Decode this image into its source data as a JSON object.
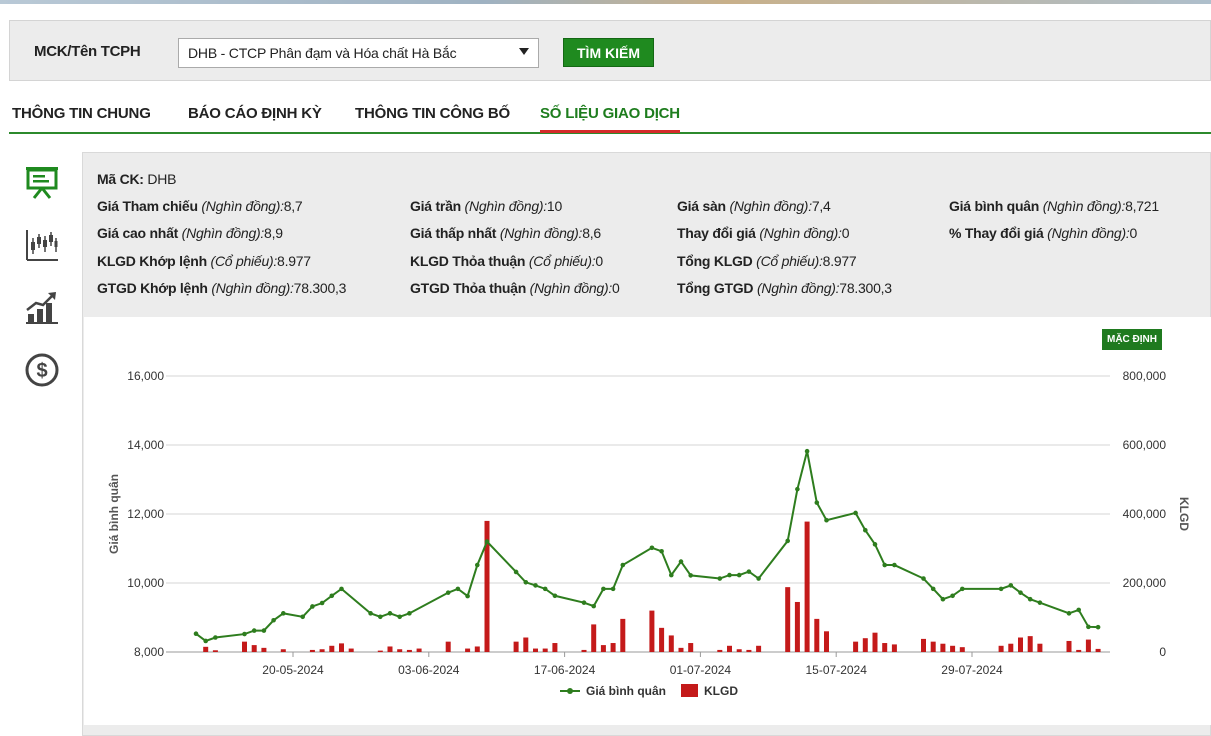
{
  "search": {
    "label": "MCK/Tên TCPH",
    "selected": "DHB - CTCP Phân đạm và Hóa chất Hà Bắc",
    "button": "TÌM KIẾM"
  },
  "tabs": [
    {
      "label": "THÔNG TIN CHUNG"
    },
    {
      "label": "BÁO CÁO ĐỊNH KỲ"
    },
    {
      "label": "THÔNG TIN CÔNG BỐ"
    },
    {
      "label": "SỐ LIỆU GIAO DỊCH",
      "active": true
    }
  ],
  "sidebar_icons": [
    "presentation-board-icon",
    "candlestick-chart-icon",
    "growth-bar-chart-icon",
    "dollar-coin-icon"
  ],
  "colors": {
    "accent": "#1f8a1f",
    "tab_underline": "#d42a2a",
    "price_line": "#2e7d1e",
    "volume_bar": "#c41a1a"
  },
  "info": {
    "mack": {
      "label": "Mã CK:",
      "value": "DHB"
    },
    "rows": [
      [
        {
          "label": "Giá Tham chiếu",
          "unit": "(Nghìn đồng):",
          "value": "8,7"
        },
        {
          "label": "Giá trần",
          "unit": "(Nghìn đồng):",
          "value": "10"
        },
        {
          "label": "Giá sàn",
          "unit": "(Nghìn đồng):",
          "value": "7,4"
        },
        {
          "label": "Giá bình quân",
          "unit": "(Nghìn đồng):",
          "value": "8,721"
        }
      ],
      [
        {
          "label": "Giá cao nhất",
          "unit": "(Nghìn đồng):",
          "value": "8,9"
        },
        {
          "label": "Giá thấp nhất",
          "unit": "(Nghìn đồng):",
          "value": "8,6"
        },
        {
          "label": "Thay đổi giá",
          "unit": "(Nghìn đồng):",
          "value": "0"
        },
        {
          "label": "% Thay đổi giá",
          "unit": "(Nghìn đồng):",
          "value": "0"
        }
      ],
      [
        {
          "label": "KLGD Khớp lệnh",
          "unit": "(Cổ phiếu):",
          "value": "8.977"
        },
        {
          "label": "KLGD Thỏa thuận",
          "unit": "(Cổ phiếu):",
          "value": "0"
        },
        {
          "label": "Tổng KLGD",
          "unit": "(Cổ phiếu):",
          "value": "8.977"
        }
      ],
      [
        {
          "label": "GTGD Khớp lệnh",
          "unit": "(Nghìn đồng):",
          "value": "78.300,3"
        },
        {
          "label": "GTGD Thỏa thuận",
          "unit": "(Nghìn đồng):",
          "value": "0"
        },
        {
          "label": "Tổng GTGD",
          "unit": "(Nghìn đồng):",
          "value": "78.300,3"
        }
      ]
    ]
  },
  "chart_button": "MẶC ĐỊNH",
  "chart_data": {
    "type": "line",
    "ylabel": "Giá bình quân",
    "y2label": "KLGD",
    "ylim": [
      8000,
      16000
    ],
    "y2lim": [
      0,
      800000
    ],
    "yticks": [
      "8,000",
      "10,000",
      "12,000",
      "14,000",
      "16,000"
    ],
    "y2ticks": [
      "0",
      "200,000",
      "400,000",
      "600,000",
      "800,000"
    ],
    "xticks": [
      {
        "label": "20-05-2024",
        "i": 10
      },
      {
        "label": "03-06-2024",
        "i": 24
      },
      {
        "label": "17-06-2024",
        "i": 38
      },
      {
        "label": "01-07-2024",
        "i": 52
      },
      {
        "label": "15-07-2024",
        "i": 66
      },
      {
        "label": "29-07-2024",
        "i": 80
      }
    ],
    "grid": true,
    "legend_position": "bottom-center",
    "series": [
      {
        "name": "Giá bình quân",
        "type": "line",
        "values": [
          [
            0,
            8530
          ],
          [
            1,
            8320
          ],
          [
            2,
            8420
          ],
          [
            5,
            8520
          ],
          [
            6,
            8620
          ],
          [
            7,
            8620
          ],
          [
            8,
            8920
          ],
          [
            9,
            9120
          ],
          [
            11,
            9020
          ],
          [
            12,
            9320
          ],
          [
            13,
            9420
          ],
          [
            14,
            9630
          ],
          [
            15,
            9830
          ],
          [
            18,
            9120
          ],
          [
            19,
            9020
          ],
          [
            20,
            9120
          ],
          [
            21,
            9020
          ],
          [
            22,
            9120
          ],
          [
            26,
            9720
          ],
          [
            27,
            9830
          ],
          [
            28,
            9620
          ],
          [
            29,
            10520
          ],
          [
            30,
            11200
          ],
          [
            33,
            10320
          ],
          [
            34,
            10020
          ],
          [
            35,
            9930
          ],
          [
            36,
            9830
          ],
          [
            37,
            9630
          ],
          [
            40,
            9430
          ],
          [
            41,
            9330
          ],
          [
            42,
            9830
          ],
          [
            43,
            9830
          ],
          [
            44,
            10520
          ],
          [
            47,
            11020
          ],
          [
            48,
            10920
          ],
          [
            49,
            10230
          ],
          [
            50,
            10620
          ],
          [
            51,
            10220
          ],
          [
            54,
            10130
          ],
          [
            55,
            10230
          ],
          [
            56,
            10230
          ],
          [
            57,
            10330
          ],
          [
            58,
            10130
          ],
          [
            61,
            11220
          ],
          [
            62,
            12720
          ],
          [
            63,
            13820
          ],
          [
            64,
            12330
          ],
          [
            65,
            11820
          ],
          [
            68,
            12030
          ],
          [
            69,
            11530
          ],
          [
            70,
            11120
          ],
          [
            71,
            10520
          ],
          [
            72,
            10520
          ],
          [
            75,
            10130
          ],
          [
            76,
            9830
          ],
          [
            77,
            9530
          ],
          [
            78,
            9630
          ],
          [
            79,
            9830
          ],
          [
            83,
            9830
          ],
          [
            84,
            9930
          ],
          [
            85,
            9720
          ],
          [
            86,
            9530
          ],
          [
            87,
            9430
          ],
          [
            90,
            9120
          ],
          [
            91,
            9220
          ],
          [
            92,
            8730
          ],
          [
            93,
            8720
          ]
        ]
      },
      {
        "name": "KLGD",
        "type": "bar",
        "values": [
          [
            1,
            15000
          ],
          [
            2,
            5000
          ],
          [
            5,
            30000
          ],
          [
            6,
            20000
          ],
          [
            7,
            12000
          ],
          [
            9,
            8000
          ],
          [
            12,
            6000
          ],
          [
            13,
            8000
          ],
          [
            14,
            18000
          ],
          [
            15,
            25000
          ],
          [
            16,
            10000
          ],
          [
            19,
            4000
          ],
          [
            20,
            16000
          ],
          [
            21,
            8000
          ],
          [
            22,
            6000
          ],
          [
            23,
            10000
          ],
          [
            26,
            30000
          ],
          [
            28,
            10000
          ],
          [
            29,
            16000
          ],
          [
            30,
            380000
          ],
          [
            33,
            30000
          ],
          [
            34,
            42000
          ],
          [
            35,
            10000
          ],
          [
            36,
            10000
          ],
          [
            37,
            26000
          ],
          [
            40,
            6000
          ],
          [
            41,
            80000
          ],
          [
            42,
            20000
          ],
          [
            43,
            26000
          ],
          [
            44,
            96000
          ],
          [
            47,
            120000
          ],
          [
            48,
            70000
          ],
          [
            49,
            48000
          ],
          [
            50,
            12000
          ],
          [
            51,
            26000
          ],
          [
            54,
            6000
          ],
          [
            55,
            18000
          ],
          [
            56,
            8000
          ],
          [
            57,
            6000
          ],
          [
            58,
            18000
          ],
          [
            61,
            188000
          ],
          [
            62,
            145000
          ],
          [
            63,
            378000
          ],
          [
            64,
            96000
          ],
          [
            65,
            60000
          ],
          [
            68,
            30000
          ],
          [
            69,
            40000
          ],
          [
            70,
            56000
          ],
          [
            71,
            26000
          ],
          [
            72,
            22000
          ],
          [
            75,
            38000
          ],
          [
            76,
            30000
          ],
          [
            77,
            24000
          ],
          [
            78,
            18000
          ],
          [
            79,
            14000
          ],
          [
            83,
            18000
          ],
          [
            84,
            24000
          ],
          [
            85,
            42000
          ],
          [
            86,
            46000
          ],
          [
            87,
            24000
          ],
          [
            90,
            32000
          ],
          [
            91,
            6000
          ],
          [
            92,
            36000
          ],
          [
            93,
            8977
          ]
        ]
      }
    ]
  }
}
